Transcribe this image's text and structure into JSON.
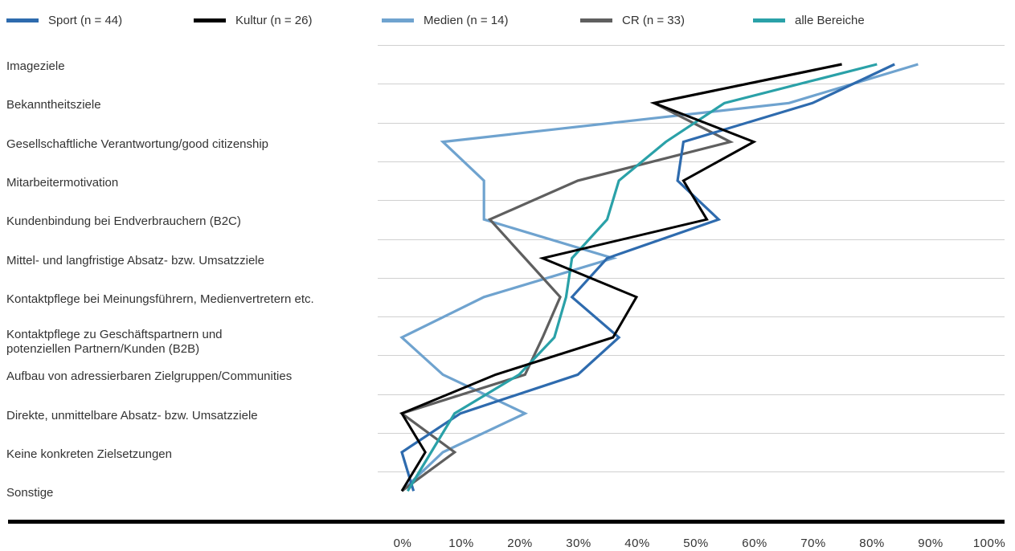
{
  "chart_data": {
    "type": "line",
    "orientation": "horizontal-profile",
    "categories": [
      "Imageziele",
      "Bekanntheitsziele",
      "Gesellschaftliche Verantwortung/good citizenship",
      "Mitarbeitermotivation",
      "Kundenbindung bei Endverbrauchern (B2C)",
      "Mittel- und langfristige Absatz- bzw. Umsatzziele",
      "Kontaktpflege bei Meinungsführern, Medienvertretern etc.",
      "Kontaktpflege zu Geschäftspartnern und\npotenziellen Partnern/Kunden (B2B)",
      "Aufbau von adressierbaren Zielgruppen/Communities",
      "Direkte, unmittelbare Absatz- bzw. Umsatzziele",
      "Keine konkreten Zielsetzungen",
      "Sonstige"
    ],
    "series": [
      {
        "name": "Sport (n = 44)",
        "color": "#2e6bae",
        "values": [
          84,
          70,
          48,
          47,
          54,
          35,
          29,
          37,
          30,
          10,
          0,
          2
        ]
      },
      {
        "name": "Kultur (n = 26)",
        "color": "#000000",
        "values": [
          75,
          43,
          60,
          48,
          52,
          24,
          40,
          36,
          16,
          0,
          4,
          0
        ]
      },
      {
        "name": "Medien (n = 14)",
        "color": "#6fa3cf",
        "values": [
          88,
          66,
          7,
          14,
          14,
          36,
          14,
          0,
          7,
          21,
          7,
          0
        ]
      },
      {
        "name": "CR (n = 33)",
        "color": "#5f5f5f",
        "values": [
          75,
          43,
          56,
          30,
          15,
          21,
          27,
          24,
          21,
          0,
          9,
          0
        ]
      },
      {
        "name": "alle Bereiche",
        "color": "#2aa1a8",
        "values": [
          81,
          55,
          45,
          37,
          35,
          29,
          28,
          26,
          20,
          9,
          5,
          1
        ]
      }
    ],
    "x_ticks": [
      "0%",
      "10%",
      "20%",
      "30%",
      "40%",
      "50%",
      "60%",
      "70%",
      "80%",
      "90%",
      "100%"
    ],
    "xlim": [
      0,
      100
    ],
    "grid": true,
    "legend_position": "top"
  }
}
